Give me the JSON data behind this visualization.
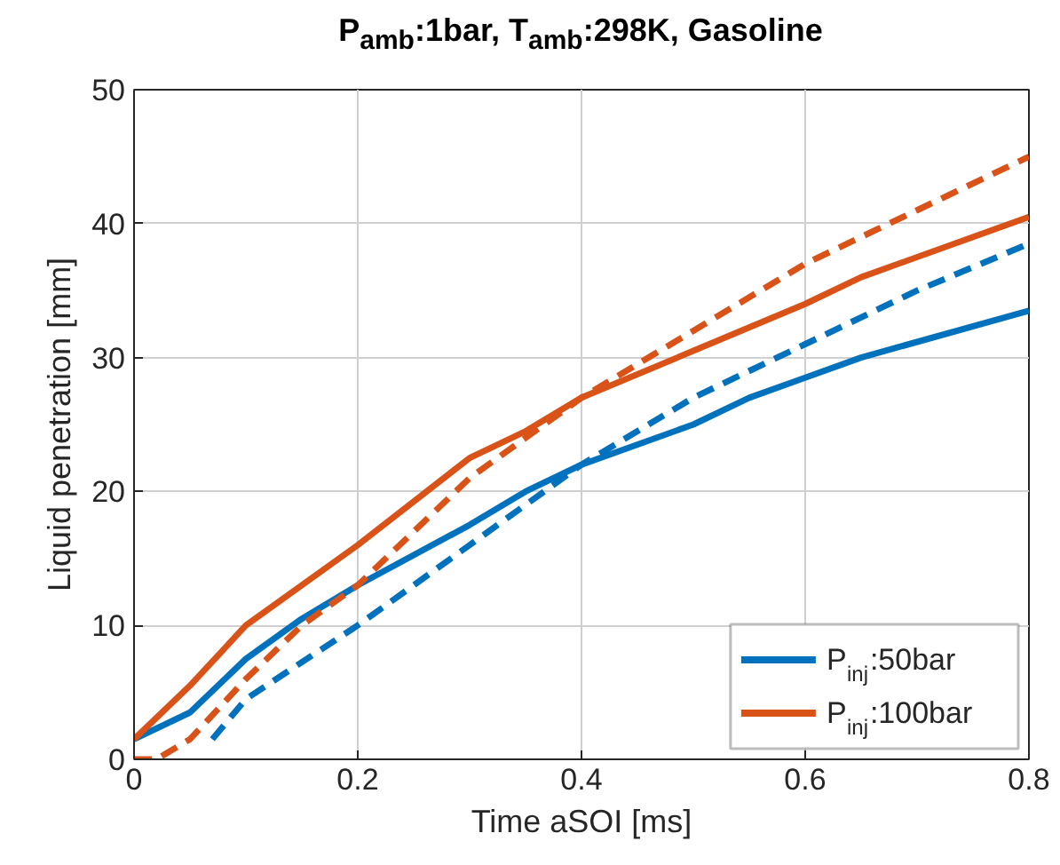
{
  "chart_data": {
    "type": "line",
    "title": "P$_{amb}$:1bar, T$_{amb}$:298K, Gasoline",
    "xlabel": "Time aSOI [ms]",
    "ylabel": "Liquid penetration [mm]",
    "xlim": [
      0,
      0.8
    ],
    "ylim": [
      0,
      50
    ],
    "xticks": [
      0,
      0.2,
      0.4,
      0.6,
      0.8
    ],
    "yticks": [
      0,
      10,
      20,
      30,
      40,
      50
    ],
    "grid": true,
    "legend": "bottom right",
    "series": [
      {
        "name": "P$_{inj}$:50bar",
        "color": "#0072bd",
        "line_style": "solid",
        "x": [
          0,
          0.05,
          0.1,
          0.15,
          0.2,
          0.3,
          0.35,
          0.4,
          0.5,
          0.55,
          0.6,
          0.65,
          0.8
        ],
        "values": [
          1.5,
          3.5,
          7.5,
          10.5,
          13,
          17.5,
          20,
          22,
          25,
          27,
          28.5,
          30,
          33.5
        ]
      },
      {
        "name": "P$_{inj}$:100bar",
        "color": "#d95319",
        "line_style": "solid",
        "x": [
          0,
          0.05,
          0.1,
          0.2,
          0.3,
          0.35,
          0.4,
          0.5,
          0.6,
          0.65,
          0.8
        ],
        "values": [
          1.5,
          5.5,
          10,
          16,
          22.5,
          24.5,
          27,
          30.5,
          34,
          36,
          40.5
        ]
      },
      {
        "color": "#0072bd",
        "line_style": "dashed",
        "x": [
          0.07,
          0.1,
          0.2,
          0.3,
          0.4,
          0.45,
          0.5,
          0.6,
          0.7,
          0.8
        ],
        "values": [
          1.5,
          4.5,
          10,
          16,
          22,
          24.5,
          27,
          31,
          35,
          38.5
        ]
      },
      {
        "color": "#d95319",
        "line_style": "dashed",
        "x": [
          0,
          0.02,
          0.05,
          0.1,
          0.15,
          0.2,
          0.3,
          0.4,
          0.5,
          0.6,
          0.7,
          0.8
        ],
        "values": [
          0,
          0,
          1.5,
          6,
          10,
          13,
          21,
          27,
          32,
          37,
          41,
          45
        ]
      }
    ]
  }
}
